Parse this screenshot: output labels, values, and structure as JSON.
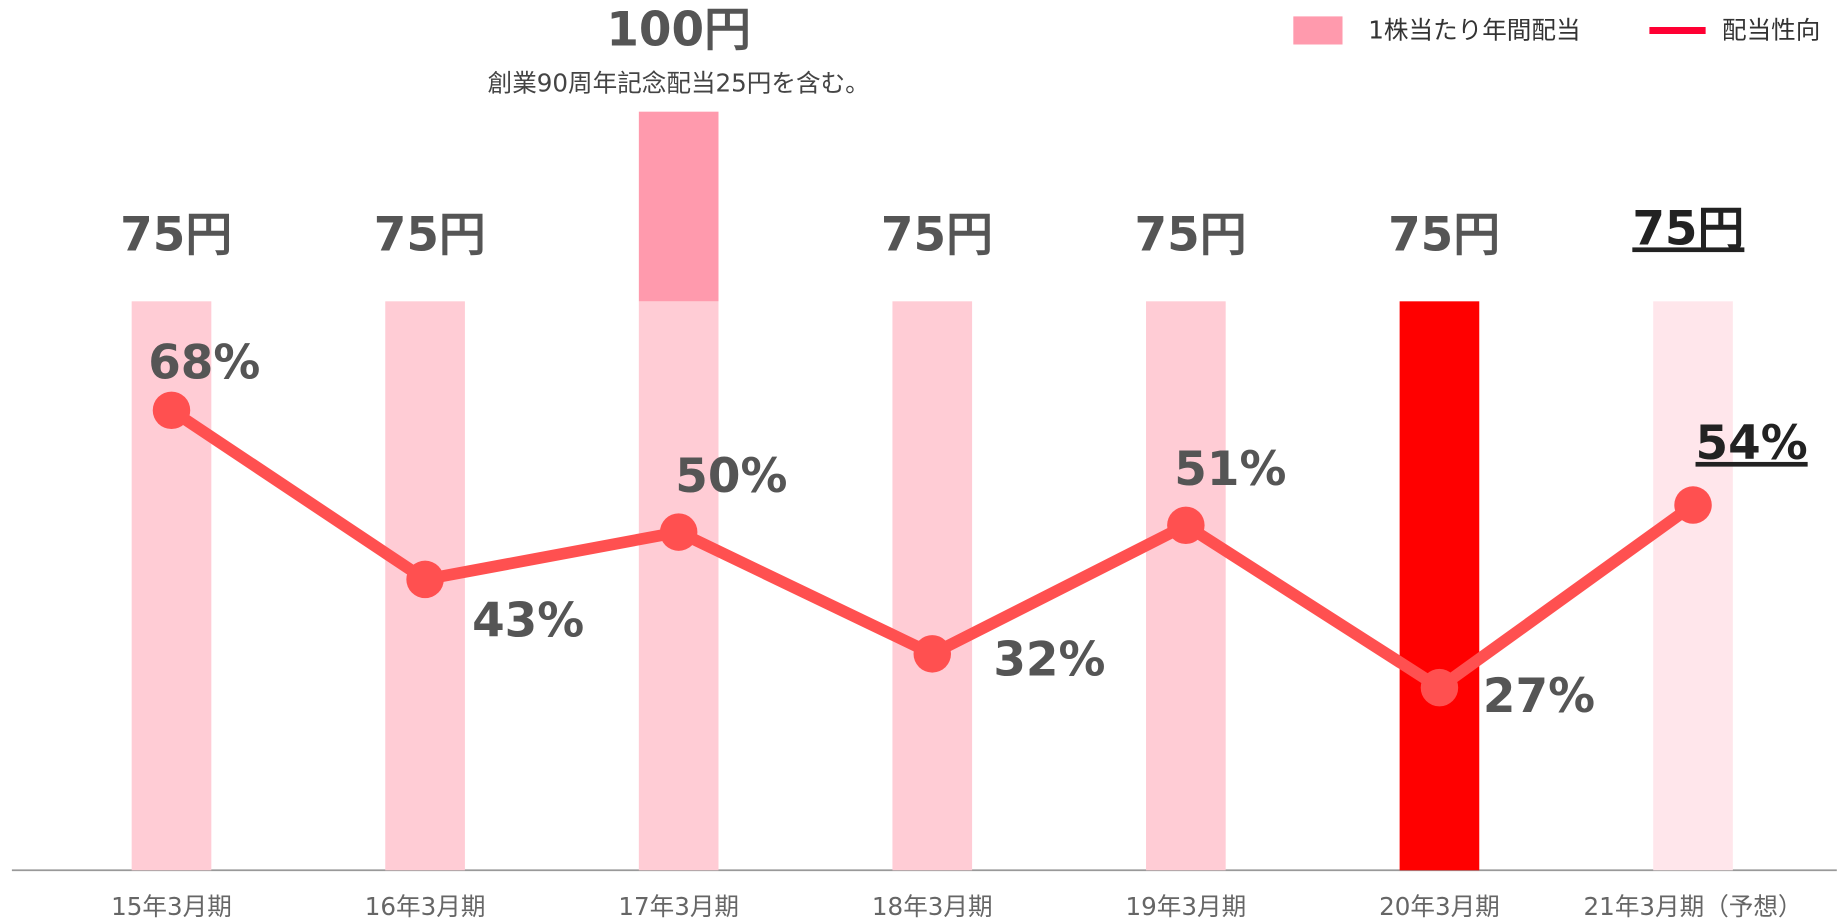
{
  "chart_data": {
    "type": "bar",
    "categories": [
      "15年3月期",
      "16年3月期",
      "17年3月期",
      "18年3月期",
      "19年3月期",
      "20年3月期",
      "21年3月期（予想）"
    ],
    "series": [
      {
        "name": "1株当たり年間配当",
        "color": "#ff9aad",
        "colors": [
          "#ffccd5",
          "#ffccd5",
          "#ffccd5",
          "#ffccd5",
          "#ffccd5",
          "#ff0000",
          "#ffe6eb"
        ],
        "values": [
          75,
          75,
          100,
          75,
          75,
          75,
          75
        ],
        "value_labels": [
          "75円",
          "75円",
          "100円",
          "75円",
          "75円",
          "75円",
          "75円"
        ]
      },
      {
        "name": "配当性向",
        "type": "line",
        "axis": "y2",
        "color": "#ff5050",
        "values": [
          68,
          43,
          50,
          32,
          51,
          27,
          54
        ],
        "value_labels": [
          "68%",
          "43%",
          "50%",
          "32%",
          "51%",
          "27%",
          "54%"
        ]
      }
    ],
    "commemorative": {
      "index": 2,
      "value": 25,
      "color": "#ff9aad",
      "annotation": "創業90周年記念配当25円を含む。"
    },
    "ylim": [
      0,
      107
    ],
    "y2lim": [
      0,
      120
    ],
    "legend": "top-right"
  }
}
